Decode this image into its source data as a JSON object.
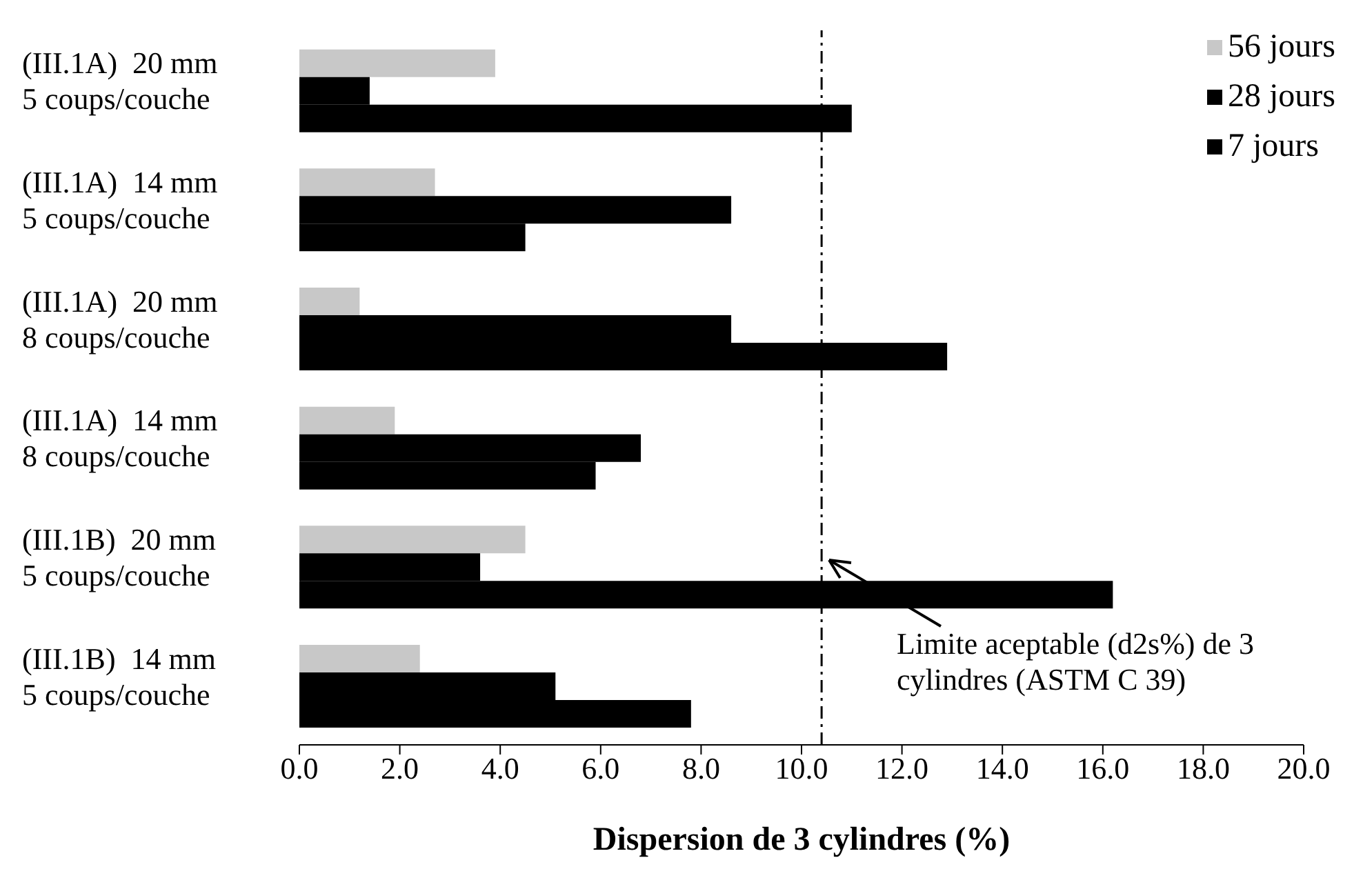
{
  "chart_data": {
    "type": "bar",
    "orientation": "horizontal",
    "xlabel": "Dispersion de 3 cylindres (%)",
    "categories": [
      "(III.1A)  20 mm\n5 coups/couche",
      "(III.1A)  14 mm\n5 coups/couche",
      "(III.1A)  20 mm\n8 coups/couche",
      "(III.1A)  14 mm\n8 coups/couche",
      "(III.1B)  20 mm\n5 coups/couche",
      "(III.1B)  14 mm\n5 coups/couche"
    ],
    "series": [
      {
        "name": "56 jours",
        "color": "#c8c8c8",
        "values": [
          3.9,
          2.7,
          1.2,
          1.9,
          4.5,
          2.4
        ]
      },
      {
        "name": "28 jours",
        "color": "#000000",
        "values": [
          1.4,
          8.6,
          8.6,
          6.8,
          3.6,
          5.1
        ]
      },
      {
        "name": "7 jours",
        "color": "#000000",
        "values": [
          11.0,
          4.5,
          12.9,
          5.9,
          16.2,
          7.8
        ]
      }
    ],
    "xlim": [
      0,
      20
    ],
    "xticks": [
      {
        "value": 0,
        "label": "0.0"
      },
      {
        "value": 2,
        "label": "2.0"
      },
      {
        "value": 4,
        "label": "4.0"
      },
      {
        "value": 6,
        "label": "6.0"
      },
      {
        "value": 8,
        "label": "8.0"
      },
      {
        "value": 10,
        "label": "10.0"
      },
      {
        "value": 12,
        "label": "12.0"
      },
      {
        "value": 14,
        "label": "14.0"
      },
      {
        "value": 16,
        "label": "16.0"
      },
      {
        "value": 18,
        "label": "18.0"
      },
      {
        "value": 20,
        "label": "20.0"
      }
    ],
    "ref_lines": [
      {
        "axis": "x",
        "value": 10.4,
        "line_style": "dashed",
        "color": "#000000"
      }
    ],
    "annotations": [
      "Limite aceptable (d2s%) de 3\ncylindres (ASTM C 39)"
    ],
    "legend": "top right",
    "grid": false
  }
}
